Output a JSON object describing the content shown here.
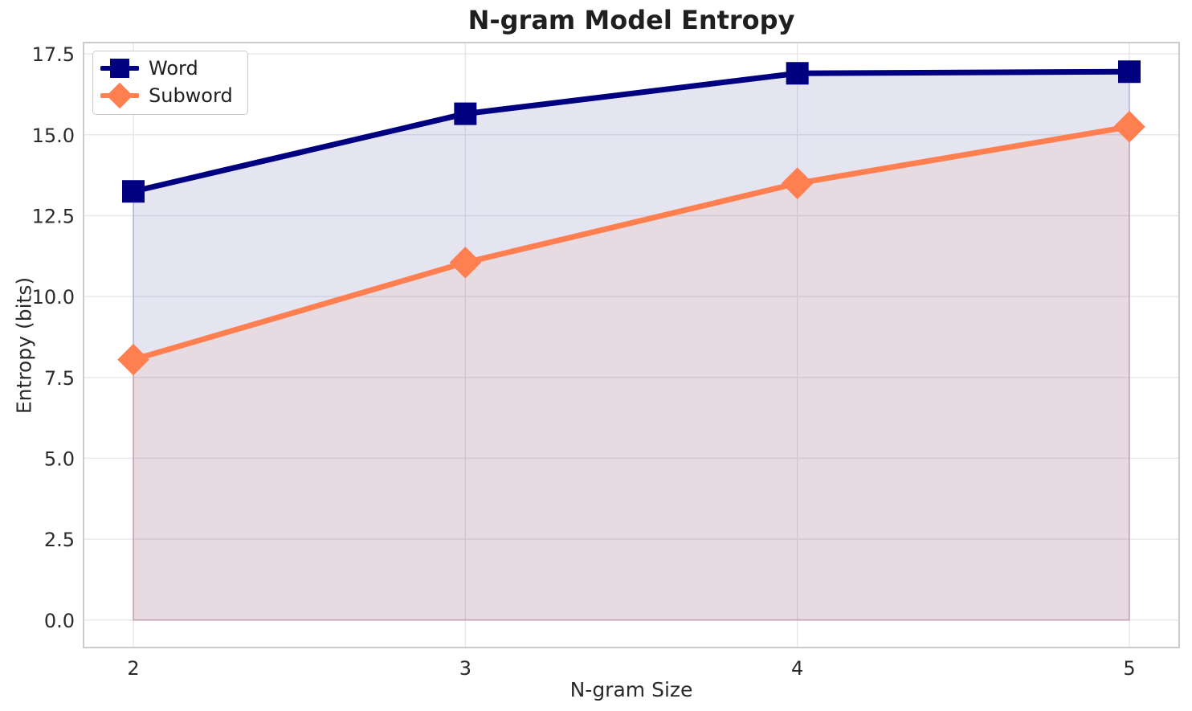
{
  "chart_data": {
    "type": "line",
    "title": "N-gram Model Entropy",
    "xlabel": "N-gram Size",
    "ylabel": "Entropy (bits)",
    "x": [
      2,
      3,
      4,
      5
    ],
    "series": [
      {
        "name": "Word",
        "color": "#000080",
        "marker": "square",
        "values": [
          13.25,
          15.65,
          16.9,
          16.95
        ],
        "fill_opacity": 0.1
      },
      {
        "name": "Subword",
        "color": "#FF7F50",
        "marker": "diamond",
        "values": [
          8.05,
          11.05,
          13.5,
          15.25
        ],
        "fill_opacity": 0.1
      }
    ],
    "fill_to_zero": true,
    "xticks": [
      2,
      3,
      4,
      5
    ],
    "xtick_labels": [
      "2",
      "3",
      "4",
      "5"
    ],
    "yticks": [
      0,
      2.5,
      5,
      7.5,
      10,
      12.5,
      15,
      17.5
    ],
    "ytick_labels": [
      "0.0",
      "2.5",
      "5.0",
      "7.5",
      "10.0",
      "12.5",
      "15.0",
      "17.5"
    ],
    "xlim": [
      1.85,
      5.15
    ],
    "ylim": [
      -0.85,
      17.85
    ],
    "grid": true,
    "legend_position": "upper-left"
  },
  "colors": {
    "grid": "#e7e7eb",
    "spine": "#cccccc",
    "tick_label": "#2b2b2b",
    "title": "#1f1f1f"
  }
}
